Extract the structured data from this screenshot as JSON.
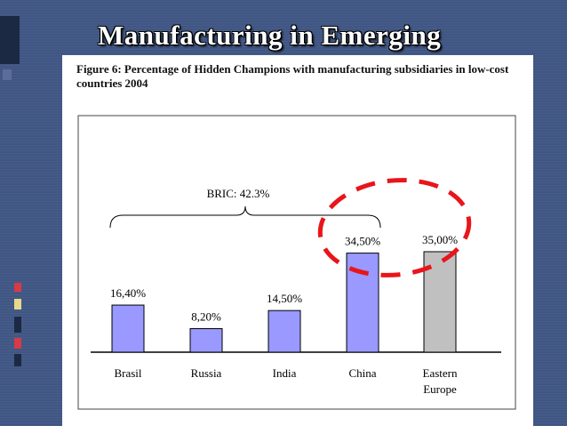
{
  "slide": {
    "title": "Manufacturing in Emerging",
    "figure_caption": "Figure 6: Percentage of Hidden Champions with manufacturing subsidiaries in low-cost countries 2004"
  },
  "colors": {
    "background": "#3f5583",
    "bar_bric": "#9999ff",
    "bar_other": "#c0c0c0",
    "highlight": "#e8151a",
    "deco_red": "#d93a45",
    "deco_yellow": "#e8d88a"
  },
  "chart_data": {
    "type": "bar",
    "title": "",
    "xlabel": "",
    "ylabel": "",
    "categories": [
      "Brasil",
      "Russia",
      "India",
      "China",
      "Eastern Europe"
    ],
    "category_lines": [
      [
        "Brasil"
      ],
      [
        "Russia"
      ],
      [
        "India"
      ],
      [
        "China"
      ],
      [
        "Eastern",
        "Europe"
      ]
    ],
    "values": [
      16.4,
      8.2,
      14.5,
      34.5,
      35.0
    ],
    "data_labels": [
      "16,40%",
      "8,20%",
      "14,50%",
      "34,50%",
      "35,00%"
    ],
    "bar_groups": [
      "bric",
      "bric",
      "bric",
      "bric",
      "other"
    ],
    "ylim": [
      0,
      50
    ],
    "grid": false,
    "legend": "none",
    "annotations": [
      {
        "text": "BRIC: 42.3%",
        "type": "brace",
        "spans": [
          "Brasil",
          "China"
        ]
      },
      {
        "text": "",
        "type": "dashed-ellipse",
        "highlight": [
          "China",
          "Eastern Europe"
        ]
      }
    ]
  }
}
